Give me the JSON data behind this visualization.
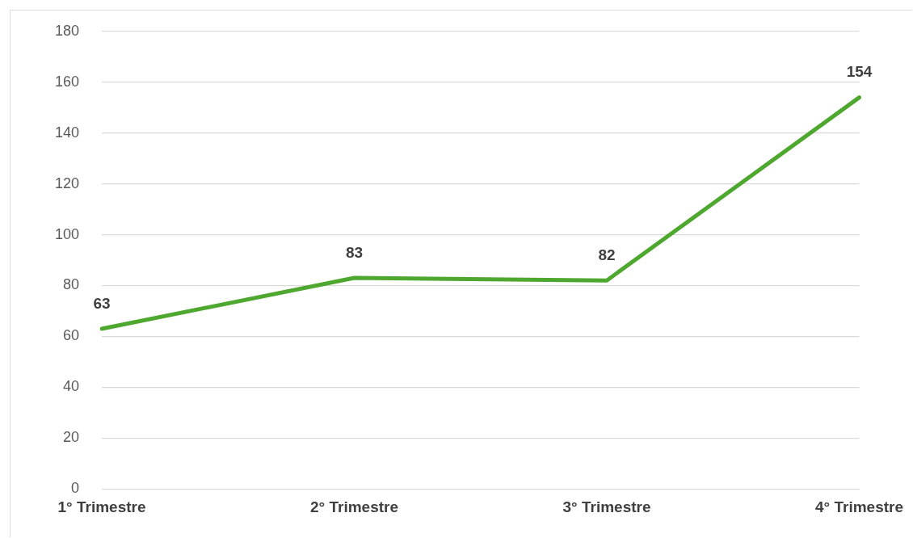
{
  "chart_data": {
    "type": "line",
    "categories": [
      "1° Trimestre",
      "2° Trimestre",
      "3° Trimestre",
      "4° Trimestre"
    ],
    "series": [
      {
        "color": "#4ea72e",
        "values": [
          63,
          83,
          82,
          154
        ]
      }
    ],
    "ylim": [
      0,
      180
    ],
    "yticks": [
      0,
      20,
      40,
      60,
      80,
      100,
      120,
      140,
      160,
      180
    ],
    "grid": "y",
    "legend": false,
    "marker": "none",
    "line_style": "solid",
    "data_labels": true
  }
}
